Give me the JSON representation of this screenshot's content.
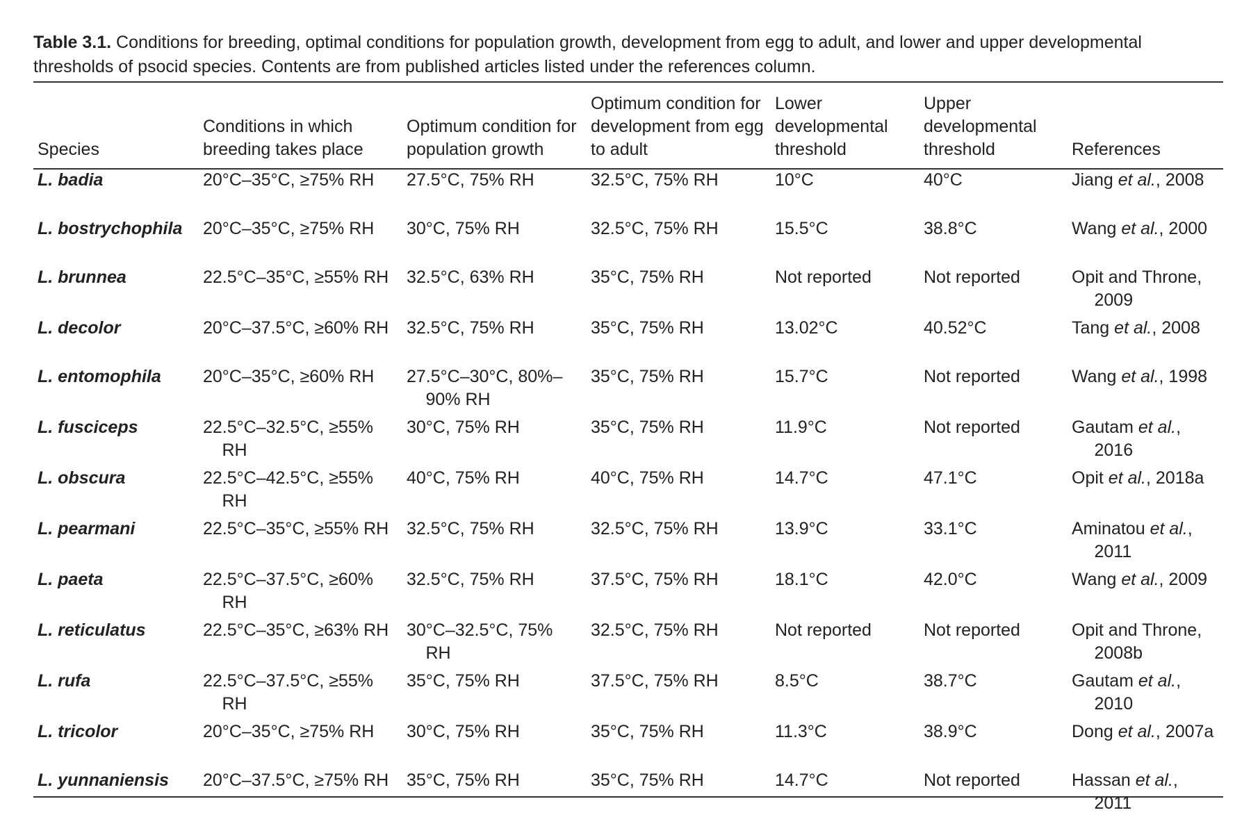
{
  "header": {
    "label": "Table 3.1.",
    "title": "Conditions for breeding, optimal conditions for population growth, development from egg to adult, and lower and upper developmental thresholds of psocid species. Contents are from published articles listed under the references column."
  },
  "table": {
    "columns": [
      "Species",
      "Conditions in which breeding takes place",
      "Optimum condition for population growth",
      "Optimum condition for development from egg to adult",
      "Lower developmental threshold",
      "Upper developmental threshold",
      "References"
    ],
    "rows": [
      [
        "L. badia",
        "20°C–35°C, ≥75% RH",
        "27.5°C, 75% RH",
        "32.5°C, 75% RH",
        "10°C",
        "40°C",
        [
          "Jiang ",
          "et al.",
          ", 2008"
        ]
      ],
      [
        "L. bostrychophila",
        "20°C–35°C, ≥75% RH",
        "30°C, 75% RH",
        "32.5°C, 75% RH",
        "15.5°C",
        "38.8°C",
        [
          "Wang ",
          "et al.",
          ", 2000"
        ]
      ],
      [
        "L. brunnea",
        "22.5°C–35°C, ≥55% RH",
        "32.5°C, 63% RH",
        "35°C, 75% RH",
        "Not reported",
        "Not reported",
        [
          "Opit and Throne, 2009"
        ]
      ],
      [
        "L. decolor",
        "20°C–37.5°C, ≥60% RH",
        "32.5°C, 75% RH",
        "35°C, 75% RH",
        "13.02°C",
        "40.52°C",
        [
          "Tang ",
          "et al.",
          ", 2008"
        ]
      ],
      [
        "L. entomophila",
        "20°C–35°C, ≥60% RH",
        "27.5°C–30°C, 80%–90% RH",
        "35°C, 75% RH",
        "15.7°C",
        "Not reported",
        [
          "Wang ",
          "et al.",
          ", 1998"
        ]
      ],
      [
        "L. fusciceps",
        "22.5°C–32.5°C, ≥55% RH",
        "30°C, 75% RH",
        "35°C, 75% RH",
        "11.9°C",
        "Not reported",
        [
          "Gautam ",
          "et al.",
          ", 2016"
        ]
      ],
      [
        "L. obscura",
        "22.5°C–42.5°C, ≥55% RH",
        "40°C, 75% RH",
        "40°C, 75% RH",
        "14.7°C",
        "47.1°C",
        [
          "Opit ",
          "et al.",
          ", 2018a"
        ]
      ],
      [
        "L. pearmani",
        "22.5°C–35°C, ≥55% RH",
        "32.5°C, 75% RH",
        "32.5°C, 75% RH",
        "13.9°C",
        "33.1°C",
        [
          "Aminatou ",
          "et al.",
          ", 2011"
        ]
      ],
      [
        "L. paeta",
        "22.5°C–37.5°C, ≥60% RH",
        "32.5°C, 75% RH",
        "37.5°C, 75% RH",
        "18.1°C",
        "42.0°C",
        [
          "Wang ",
          "et al.",
          ", 2009"
        ]
      ],
      [
        "L. reticulatus",
        "22.5°C–35°C, ≥63% RH",
        "30°C–32.5°C, 75% RH",
        "32.5°C, 75% RH",
        "Not reported",
        "Not reported",
        [
          "Opit and Throne, 2008b"
        ]
      ],
      [
        "L. rufa",
        "22.5°C–37.5°C, ≥55% RH",
        "35°C, 75% RH",
        "37.5°C, 75% RH",
        "8.5°C",
        "38.7°C",
        [
          "Gautam ",
          "et al.",
          ", 2010"
        ]
      ],
      [
        "L. tricolor",
        "20°C–35°C, ≥75% RH",
        "30°C, 75% RH",
        "35°C, 75% RH",
        "11.3°C",
        "38.9°C",
        [
          "Dong ",
          "et al.",
          ", 2007a"
        ]
      ],
      [
        "L. yunnaniensis",
        "20°C–37.5°C, ≥75% RH",
        "35°C, 75% RH",
        "35°C, 75% RH",
        "14.7°C",
        "Not reported",
        [
          "Hassan ",
          "et al.",
          ", 2011"
        ]
      ]
    ]
  }
}
